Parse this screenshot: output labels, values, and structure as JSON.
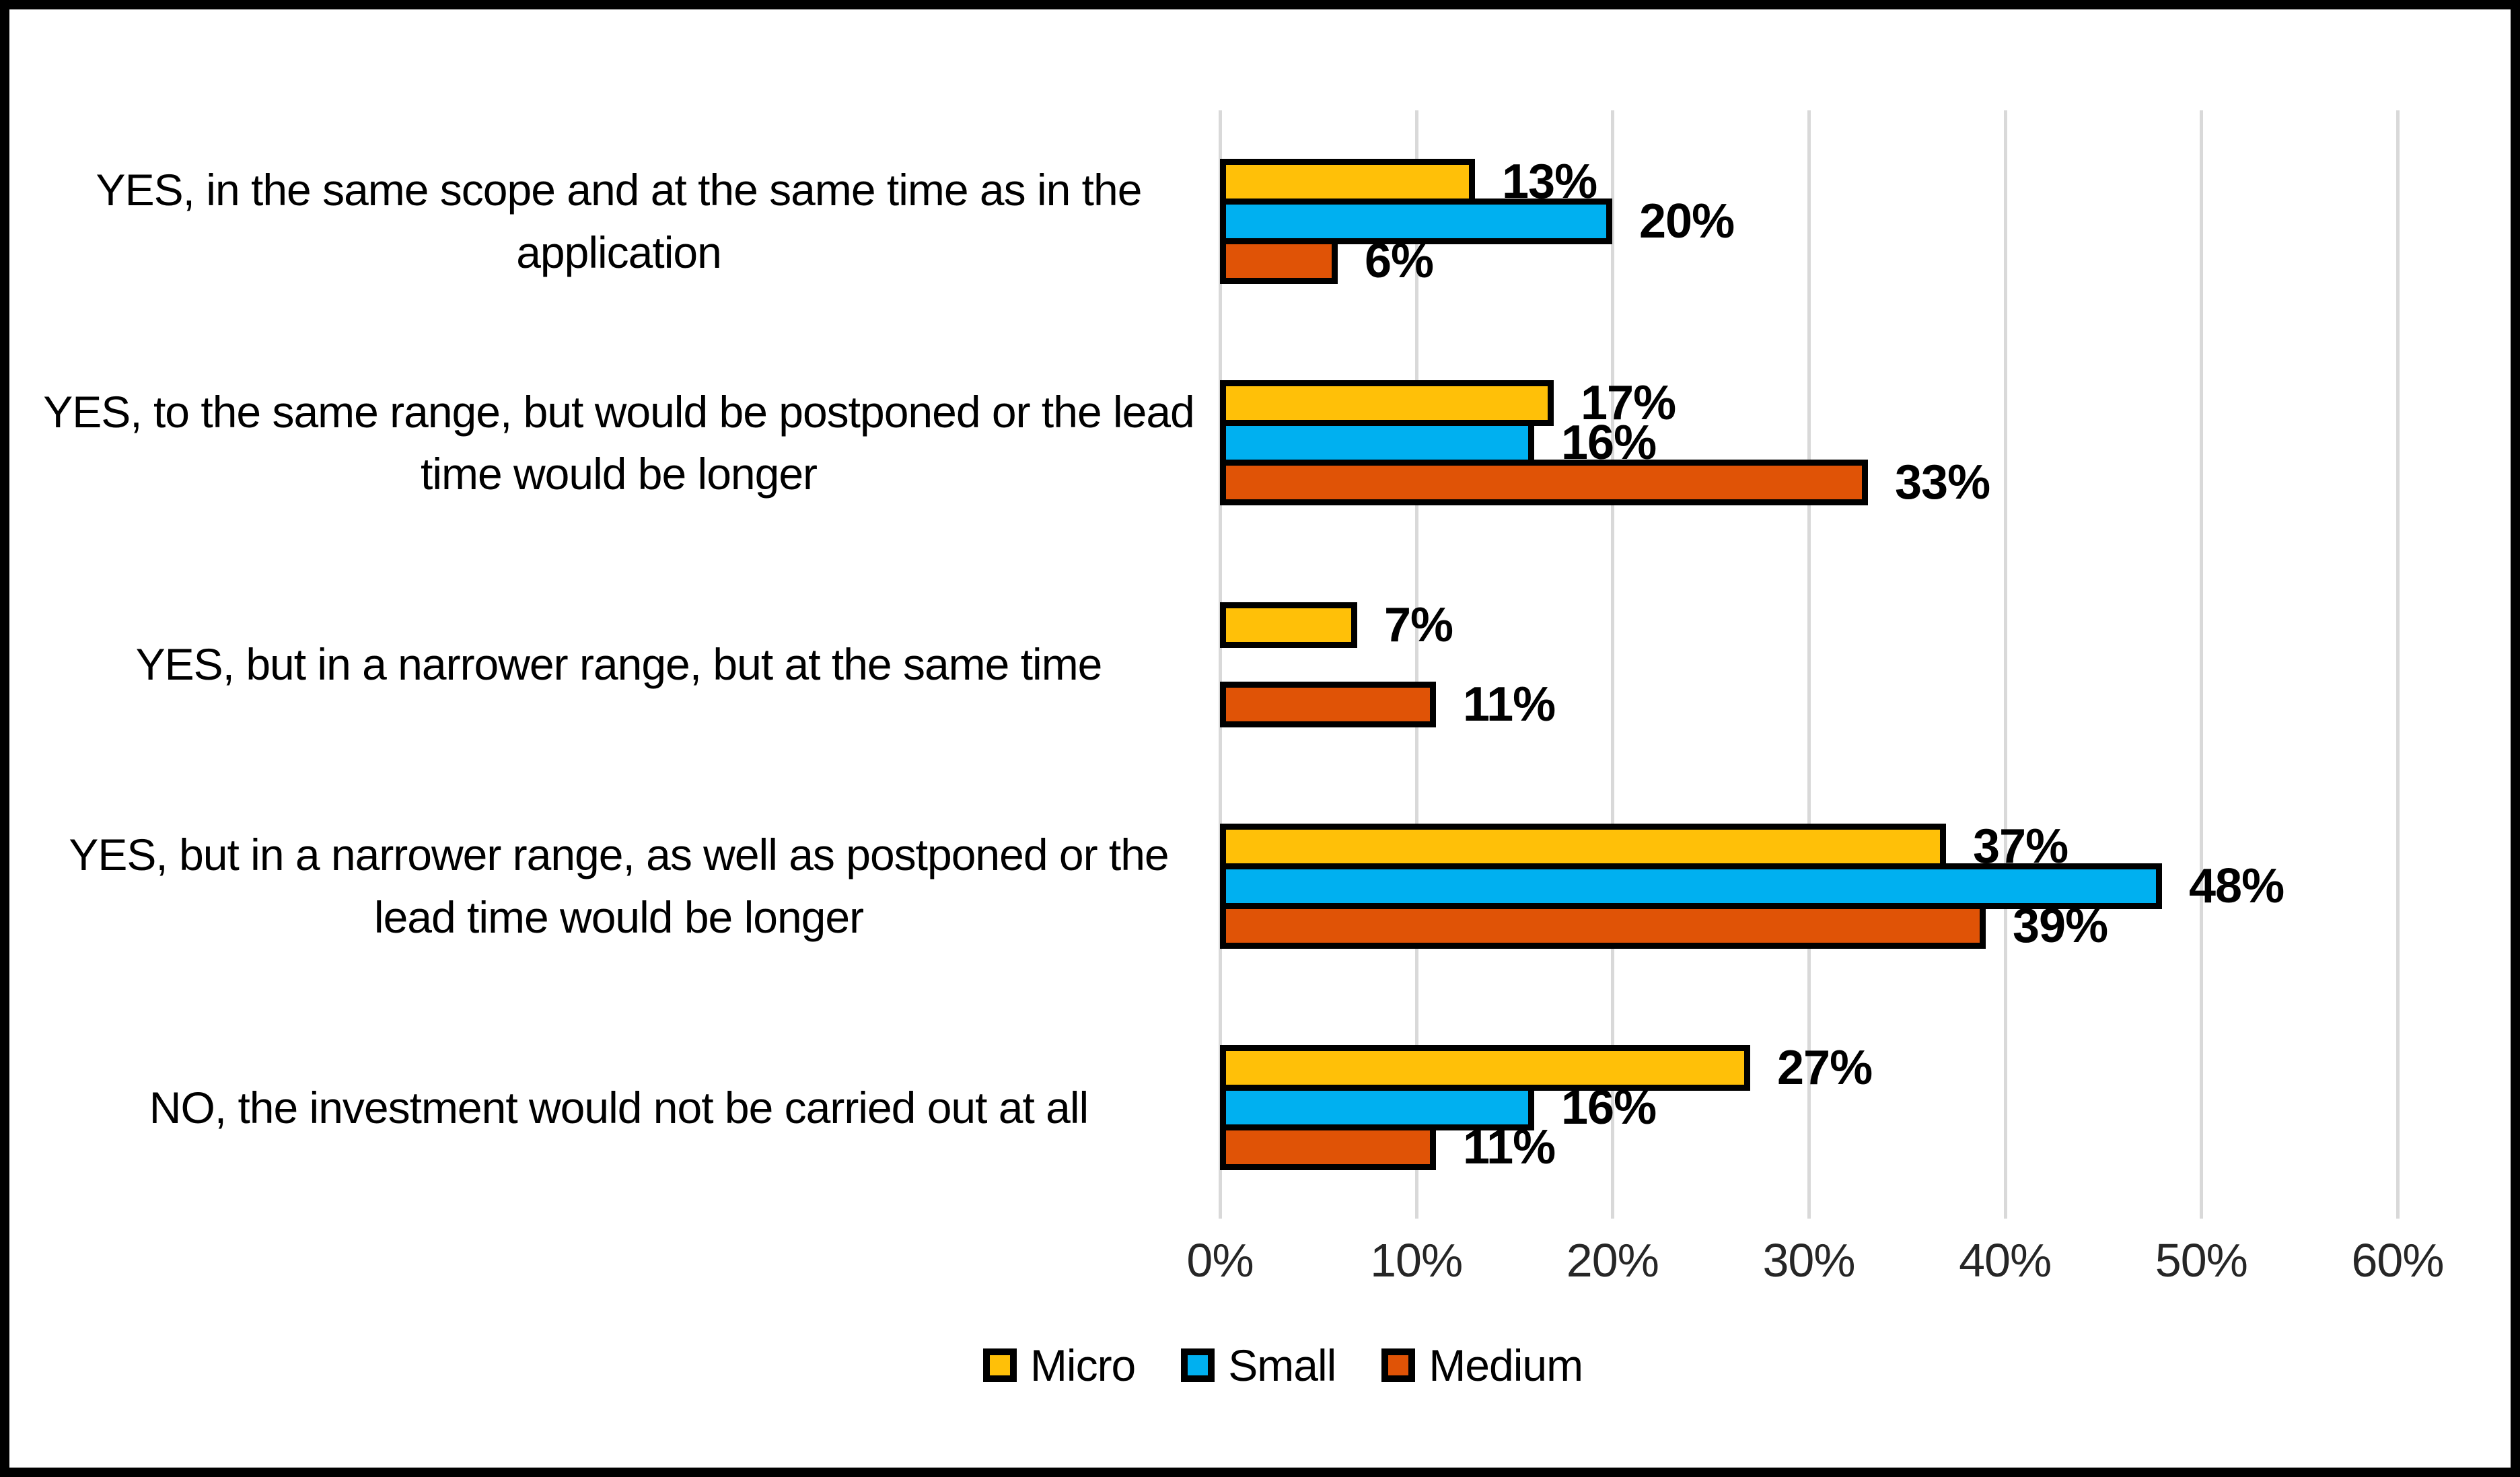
{
  "chart_data": {
    "type": "bar",
    "orientation": "horizontal",
    "title": "",
    "categories": [
      "YES, in the same scope and at the same time as in the application",
      "YES, to the same range, but would be postponed or the lead time would be longer",
      "YES, but in a narrower range, but at the same time",
      "YES, but in a narrower range, as well as postponed or the lead time would be longer",
      "NO, the investment would not be carried out at all"
    ],
    "series": [
      {
        "name": "Micro",
        "color": "#FFC008",
        "values": [
          13,
          17,
          7,
          37,
          27
        ]
      },
      {
        "name": "Small",
        "color": "#00B0F0",
        "values": [
          20,
          16,
          0,
          48,
          16
        ]
      },
      {
        "name": "Medium",
        "color": "#E05306",
        "values": [
          6,
          33,
          11,
          39,
          11
        ]
      }
    ],
    "data_labels": [
      [
        "13%",
        "17%",
        "7%",
        "37%",
        "27%"
      ],
      [
        "20%",
        "16%",
        "",
        "48%",
        "16%"
      ],
      [
        "6%",
        "33%",
        "11%",
        "39%",
        "11%"
      ]
    ],
    "xlim": [
      0,
      60
    ],
    "x_ticks": [
      "0%",
      "10%",
      "20%",
      "30%",
      "40%",
      "50%",
      "60%"
    ],
    "grid": true,
    "gridline_color": "#d9d9d9",
    "bar_outline_color": "#000000",
    "legend_position": "bottom",
    "legend_labels": [
      "Micro",
      "Small",
      "Medium"
    ]
  }
}
